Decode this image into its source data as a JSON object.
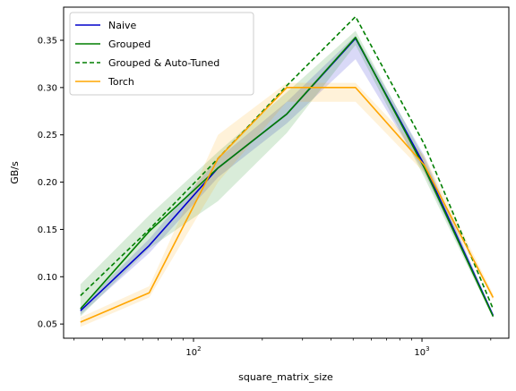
{
  "chart_data": {
    "type": "line",
    "title": "",
    "xlabel": "square_matrix_size",
    "ylabel": "GB/s",
    "xscale": "log",
    "xlim": [
      27,
      2400
    ],
    "ylim": [
      0.035,
      0.385
    ],
    "grid": false,
    "legend_position": "top-left",
    "x": [
      32,
      64,
      128,
      256,
      512,
      1024,
      2048
    ],
    "x_ticks": [
      {
        "value": 100,
        "base": "10",
        "exp": "2"
      },
      {
        "value": 1000,
        "base": "10",
        "exp": "3"
      }
    ],
    "y_ticks": [
      0.05,
      0.1,
      0.15,
      0.2,
      0.25,
      0.3,
      0.35
    ],
    "y_tick_labels": [
      "0.05",
      "0.10",
      "0.15",
      "0.20",
      "0.25",
      "0.30",
      "0.35"
    ],
    "series": [
      {
        "name": "Naive",
        "color": "#0000cc",
        "dash": "solid",
        "values": [
          0.064,
          0.133,
          0.215,
          0.272,
          0.352,
          0.218,
          0.059
        ],
        "band_low": [
          0.06,
          0.125,
          0.205,
          0.262,
          0.33,
          0.21,
          0.057
        ],
        "band_high": [
          0.068,
          0.14,
          0.225,
          0.285,
          0.355,
          0.228,
          0.061
        ]
      },
      {
        "name": "Grouped",
        "color": "#007f00",
        "dash": "solid",
        "values": [
          0.066,
          0.148,
          0.215,
          0.272,
          0.353,
          0.215,
          0.058
        ],
        "band_low": [
          0.058,
          0.13,
          0.18,
          0.252,
          0.345,
          0.205,
          0.056
        ],
        "band_high": [
          0.092,
          0.165,
          0.232,
          0.295,
          0.36,
          0.225,
          0.06
        ]
      },
      {
        "name": "Grouped & Auto-Tuned",
        "color": "#007f00",
        "dash": "dashed",
        "values": [
          0.08,
          0.15,
          0.225,
          0.302,
          0.375,
          0.24,
          0.066
        ]
      },
      {
        "name": "Torch",
        "color": "#ffa500",
        "dash": "solid",
        "values": [
          0.052,
          0.083,
          0.225,
          0.3,
          0.3,
          0.218,
          0.078
        ],
        "band_low": [
          0.047,
          0.078,
          0.2,
          0.285,
          0.285,
          0.21,
          0.075
        ],
        "band_high": [
          0.057,
          0.09,
          0.25,
          0.305,
          0.305,
          0.228,
          0.082
        ]
      }
    ]
  }
}
